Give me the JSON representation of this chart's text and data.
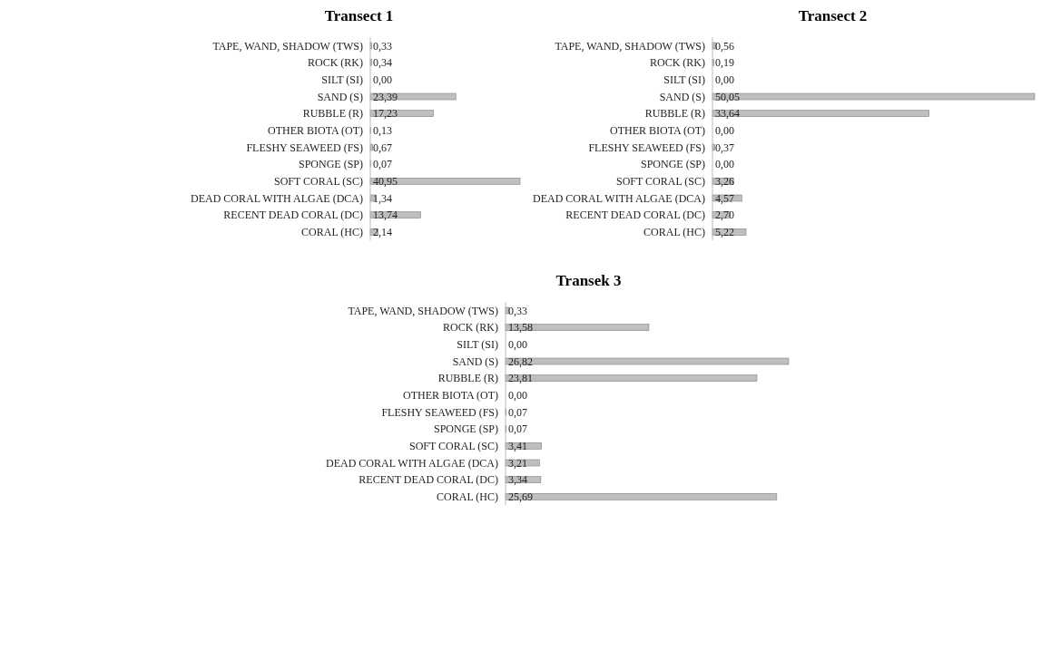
{
  "chart_data": [
    {
      "type": "bar",
      "orientation": "horizontal",
      "title": "Transect 1",
      "categories": [
        "TAPE, WAND, SHADOW (TWS)",
        "ROCK (RK)",
        "SILT (SI)",
        "SAND (S)",
        "RUBBLE (R)",
        "OTHER BIOTA (OT)",
        "FLESHY SEAWEED (FS)",
        "SPONGE (SP)",
        "SOFT CORAL (SC)",
        "DEAD CORAL WITH ALGAE (DCA)",
        "RECENT DEAD CORAL (DC)",
        "CORAL (HC)"
      ],
      "values": [
        0.33,
        0.34,
        0.0,
        23.39,
        17.23,
        0.13,
        0.67,
        0.07,
        40.95,
        1.34,
        13.74,
        2.14
      ],
      "value_labels": [
        "0,33",
        "0,34",
        "0,00",
        "23,39",
        "17,23",
        "0,13",
        "0,67",
        "0,07",
        "40,95",
        "1,34",
        "13,74",
        "2,14"
      ],
      "color": "#bfbfbf"
    },
    {
      "type": "bar",
      "orientation": "horizontal",
      "title": "Transect 2",
      "categories": [
        "TAPE, WAND, SHADOW (TWS)",
        "ROCK (RK)",
        "SILT (SI)",
        "SAND (S)",
        "RUBBLE (R)",
        "OTHER BIOTA (OT)",
        "FLESHY SEAWEED (FS)",
        "SPONGE (SP)",
        "SOFT CORAL (SC)",
        "DEAD CORAL WITH ALGAE (DCA)",
        "RECENT DEAD CORAL (DC)",
        "CORAL (HC)"
      ],
      "values": [
        0.56,
        0.19,
        0.0,
        50.05,
        33.64,
        0.0,
        0.37,
        0.0,
        3.26,
        4.57,
        2.7,
        5.22
      ],
      "value_labels": [
        "0,56",
        "0,19",
        "0,00",
        "50,05",
        "33,64",
        "0,00",
        "0,37",
        "0,00",
        "3,26",
        "4,57",
        "2,70",
        "5,22"
      ],
      "color": "#bfbfbf"
    },
    {
      "type": "bar",
      "orientation": "horizontal",
      "title": "Transek 3",
      "categories": [
        "TAPE, WAND, SHADOW (TWS)",
        "ROCK (RK)",
        "SILT (SI)",
        "SAND (S)",
        "RUBBLE (R)",
        "OTHER BIOTA (OT)",
        "FLESHY SEAWEED (FS)",
        "SPONGE (SP)",
        "SOFT CORAL (SC)",
        "DEAD CORAL WITH ALGAE (DCA)",
        "RECENT DEAD CORAL (DC)",
        "CORAL (HC)"
      ],
      "values": [
        0.33,
        13.58,
        0.0,
        26.82,
        23.81,
        0.0,
        0.07,
        0.07,
        3.41,
        3.21,
        3.34,
        25.69
      ],
      "value_labels": [
        "0,33",
        "13,58",
        "0,00",
        "26,82",
        "23,81",
        "0,00",
        "0,07",
        "0,07",
        "3,41",
        "3,21",
        "3,34",
        "25,69"
      ],
      "color": "#bfbfbf"
    }
  ]
}
